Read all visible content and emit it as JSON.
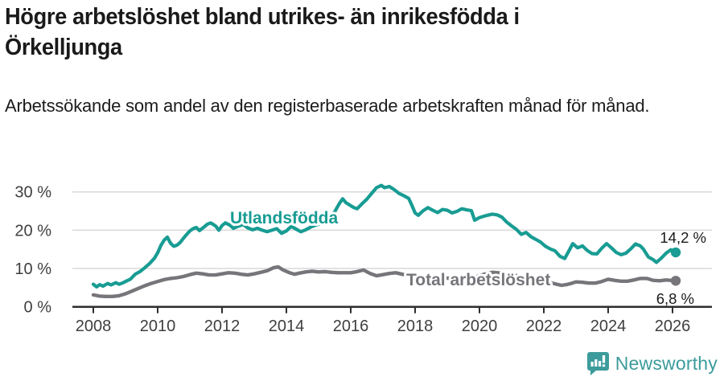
{
  "header": {
    "title": "Högre arbetslöshet bland utrikes- än inrikesfödda i Örkelljunga",
    "subtitle": "Arbetssökande som andel av den registerbaserade arbetskraften månad för månad."
  },
  "footer": {
    "brand": "Newsworthy",
    "brand_color": "#3d9b9b",
    "logo_icon": "speech-bubble-bar-chart-icon"
  },
  "chart_data": {
    "type": "line",
    "title": "Högre arbetslöshet bland utrikes- än inrikesfödda i Örkelljunga",
    "subtitle": "Arbetssökande som andel av den registerbaserade arbetskraften månad för månad.",
    "unit": "%",
    "grid": true,
    "x_axis": {
      "ticks": [
        2008,
        2010,
        2012,
        2014,
        2016,
        2018,
        2020,
        2022,
        2024,
        2026
      ],
      "range": [
        2007.4,
        2027.2
      ]
    },
    "y_axis": {
      "ticks": [
        0,
        10,
        20,
        30
      ],
      "tick_labels": [
        "0 %",
        "10 %",
        "20 %",
        "30 %"
      ],
      "range": [
        0,
        33
      ]
    },
    "colors": {
      "gridline": "#d9d9d9",
      "axis": "#2e2e2e",
      "tick_text": "#3f3f3f",
      "annotation_text": "#1a1a1a"
    },
    "series": [
      {
        "name": "Utlandsfödda",
        "color": "#189c93",
        "end_label": "14,2 %",
        "end_value": 14.2,
        "points": [
          [
            2008.0,
            5.9
          ],
          [
            2008.1,
            5.2
          ],
          [
            2008.2,
            5.8
          ],
          [
            2008.3,
            5.4
          ],
          [
            2008.45,
            6.1
          ],
          [
            2008.55,
            5.7
          ],
          [
            2008.7,
            6.3
          ],
          [
            2008.8,
            5.9
          ],
          [
            2008.9,
            6.2
          ],
          [
            2009.0,
            6.6
          ],
          [
            2009.15,
            7.2
          ],
          [
            2009.3,
            8.5
          ],
          [
            2009.45,
            9.2
          ],
          [
            2009.6,
            10.2
          ],
          [
            2009.75,
            11.3
          ],
          [
            2009.9,
            12.7
          ],
          [
            2010.0,
            14.1
          ],
          [
            2010.1,
            16.0
          ],
          [
            2010.2,
            17.4
          ],
          [
            2010.3,
            18.2
          ],
          [
            2010.4,
            16.6
          ],
          [
            2010.5,
            15.8
          ],
          [
            2010.6,
            16.1
          ],
          [
            2010.7,
            16.8
          ],
          [
            2010.85,
            18.4
          ],
          [
            2011.0,
            19.8
          ],
          [
            2011.1,
            20.4
          ],
          [
            2011.2,
            20.7
          ],
          [
            2011.3,
            19.9
          ],
          [
            2011.45,
            20.9
          ],
          [
            2011.55,
            21.6
          ],
          [
            2011.65,
            21.9
          ],
          [
            2011.8,
            21.1
          ],
          [
            2011.9,
            20.0
          ],
          [
            2012.0,
            21.2
          ],
          [
            2012.1,
            21.9
          ],
          [
            2012.25,
            21.3
          ],
          [
            2012.35,
            20.5
          ],
          [
            2012.5,
            21.0
          ],
          [
            2012.65,
            21.5
          ],
          [
            2012.8,
            20.6
          ],
          [
            2012.95,
            20.1
          ],
          [
            2013.1,
            20.5
          ],
          [
            2013.25,
            20.0
          ],
          [
            2013.4,
            19.6
          ],
          [
            2013.55,
            20.0
          ],
          [
            2013.7,
            20.4
          ],
          [
            2013.85,
            19.2
          ],
          [
            2014.0,
            19.8
          ],
          [
            2014.15,
            21.0
          ],
          [
            2014.3,
            20.3
          ],
          [
            2014.45,
            19.6
          ],
          [
            2014.6,
            20.1
          ],
          [
            2014.75,
            20.8
          ],
          [
            2014.9,
            21.3
          ],
          [
            2015.05,
            21.7
          ],
          [
            2015.2,
            22.5
          ],
          [
            2015.35,
            23.4
          ],
          [
            2015.5,
            24.8
          ],
          [
            2015.65,
            27.0
          ],
          [
            2015.75,
            28.2
          ],
          [
            2015.85,
            27.2
          ],
          [
            2016.0,
            26.4
          ],
          [
            2016.1,
            25.9
          ],
          [
            2016.2,
            25.6
          ],
          [
            2016.35,
            26.9
          ],
          [
            2016.5,
            28.1
          ],
          [
            2016.65,
            29.6
          ],
          [
            2016.8,
            31.1
          ],
          [
            2016.95,
            31.7
          ],
          [
            2017.05,
            31.1
          ],
          [
            2017.2,
            31.4
          ],
          [
            2017.35,
            30.6
          ],
          [
            2017.5,
            29.6
          ],
          [
            2017.65,
            29.0
          ],
          [
            2017.8,
            28.3
          ],
          [
            2017.9,
            26.5
          ],
          [
            2018.0,
            24.5
          ],
          [
            2018.1,
            23.9
          ],
          [
            2018.25,
            25.1
          ],
          [
            2018.4,
            25.9
          ],
          [
            2018.55,
            25.2
          ],
          [
            2018.7,
            24.6
          ],
          [
            2018.85,
            25.4
          ],
          [
            2019.0,
            25.2
          ],
          [
            2019.15,
            24.5
          ],
          [
            2019.3,
            24.9
          ],
          [
            2019.45,
            25.6
          ],
          [
            2019.6,
            25.3
          ],
          [
            2019.75,
            25.1
          ],
          [
            2019.85,
            22.6
          ],
          [
            2020.0,
            23.3
          ],
          [
            2020.2,
            23.8
          ],
          [
            2020.4,
            24.2
          ],
          [
            2020.55,
            24.0
          ],
          [
            2020.7,
            23.4
          ],
          [
            2020.85,
            22.1
          ],
          [
            2021.0,
            21.1
          ],
          [
            2021.15,
            20.2
          ],
          [
            2021.3,
            18.9
          ],
          [
            2021.45,
            19.4
          ],
          [
            2021.6,
            18.3
          ],
          [
            2021.75,
            17.6
          ],
          [
            2021.9,
            16.9
          ],
          [
            2022.05,
            15.8
          ],
          [
            2022.2,
            15.1
          ],
          [
            2022.35,
            14.6
          ],
          [
            2022.5,
            13.2
          ],
          [
            2022.65,
            12.6
          ],
          [
            2022.8,
            14.9
          ],
          [
            2022.9,
            16.5
          ],
          [
            2023.05,
            15.4
          ],
          [
            2023.2,
            15.9
          ],
          [
            2023.35,
            14.7
          ],
          [
            2023.5,
            13.9
          ],
          [
            2023.65,
            13.8
          ],
          [
            2023.8,
            15.3
          ],
          [
            2023.95,
            16.5
          ],
          [
            2024.1,
            15.4
          ],
          [
            2024.25,
            14.2
          ],
          [
            2024.4,
            13.6
          ],
          [
            2024.55,
            14.0
          ],
          [
            2024.7,
            15.1
          ],
          [
            2024.85,
            16.4
          ],
          [
            2025.0,
            15.9
          ],
          [
            2025.1,
            15.0
          ],
          [
            2025.25,
            13.0
          ],
          [
            2025.4,
            12.3
          ],
          [
            2025.5,
            11.6
          ],
          [
            2025.65,
            12.7
          ],
          [
            2025.8,
            14.0
          ],
          [
            2025.95,
            14.9
          ],
          [
            2026.1,
            14.2
          ]
        ]
      },
      {
        "name": "Total arbetslöshet",
        "color": "#77757a",
        "end_label": "6,8 %",
        "end_value": 6.8,
        "points": [
          [
            2008.0,
            3.1
          ],
          [
            2008.2,
            2.8
          ],
          [
            2008.4,
            2.7
          ],
          [
            2008.6,
            2.7
          ],
          [
            2008.8,
            2.9
          ],
          [
            2009.0,
            3.4
          ],
          [
            2009.2,
            4.1
          ],
          [
            2009.4,
            4.8
          ],
          [
            2009.6,
            5.5
          ],
          [
            2009.8,
            6.1
          ],
          [
            2010.0,
            6.6
          ],
          [
            2010.2,
            7.1
          ],
          [
            2010.4,
            7.4
          ],
          [
            2010.6,
            7.6
          ],
          [
            2010.8,
            7.9
          ],
          [
            2011.0,
            8.4
          ],
          [
            2011.2,
            8.8
          ],
          [
            2011.4,
            8.6
          ],
          [
            2011.6,
            8.3
          ],
          [
            2011.8,
            8.3
          ],
          [
            2012.0,
            8.6
          ],
          [
            2012.2,
            8.9
          ],
          [
            2012.4,
            8.8
          ],
          [
            2012.6,
            8.5
          ],
          [
            2012.8,
            8.3
          ],
          [
            2013.0,
            8.6
          ],
          [
            2013.2,
            9.0
          ],
          [
            2013.4,
            9.4
          ],
          [
            2013.6,
            10.2
          ],
          [
            2013.75,
            10.4
          ],
          [
            2013.9,
            9.6
          ],
          [
            2014.1,
            8.9
          ],
          [
            2014.25,
            8.5
          ],
          [
            2014.4,
            8.8
          ],
          [
            2014.6,
            9.1
          ],
          [
            2014.8,
            9.3
          ],
          [
            2015.0,
            9.1
          ],
          [
            2015.2,
            9.2
          ],
          [
            2015.4,
            9.0
          ],
          [
            2015.6,
            8.9
          ],
          [
            2015.8,
            8.9
          ],
          [
            2016.0,
            8.9
          ],
          [
            2016.2,
            9.2
          ],
          [
            2016.4,
            9.6
          ],
          [
            2016.6,
            8.7
          ],
          [
            2016.8,
            8.1
          ],
          [
            2017.0,
            8.4
          ],
          [
            2017.2,
            8.7
          ],
          [
            2017.4,
            8.9
          ],
          [
            2017.6,
            8.5
          ],
          [
            2017.8,
            8.2
          ],
          [
            2018.0,
            8.0
          ],
          [
            2018.3,
            7.8
          ],
          [
            2018.6,
            7.7
          ],
          [
            2019.0,
            7.5
          ],
          [
            2019.4,
            7.4
          ],
          [
            2019.8,
            7.6
          ],
          [
            2020.1,
            8.4
          ],
          [
            2020.4,
            9.0
          ],
          [
            2020.7,
            8.8
          ],
          [
            2021.0,
            8.4
          ],
          [
            2021.3,
            7.9
          ],
          [
            2021.6,
            7.4
          ],
          [
            2021.9,
            6.9
          ],
          [
            2022.2,
            6.3
          ],
          [
            2022.4,
            5.9
          ],
          [
            2022.55,
            5.6
          ],
          [
            2022.7,
            5.8
          ],
          [
            2022.85,
            6.1
          ],
          [
            2023.0,
            6.5
          ],
          [
            2023.2,
            6.4
          ],
          [
            2023.4,
            6.2
          ],
          [
            2023.6,
            6.2
          ],
          [
            2023.8,
            6.6
          ],
          [
            2024.0,
            7.2
          ],
          [
            2024.2,
            6.9
          ],
          [
            2024.4,
            6.7
          ],
          [
            2024.6,
            6.7
          ],
          [
            2024.8,
            7.0
          ],
          [
            2025.0,
            7.4
          ],
          [
            2025.2,
            7.4
          ],
          [
            2025.4,
            6.9
          ],
          [
            2025.6,
            6.8
          ],
          [
            2025.8,
            7.0
          ],
          [
            2026.1,
            6.8
          ]
        ]
      }
    ]
  }
}
